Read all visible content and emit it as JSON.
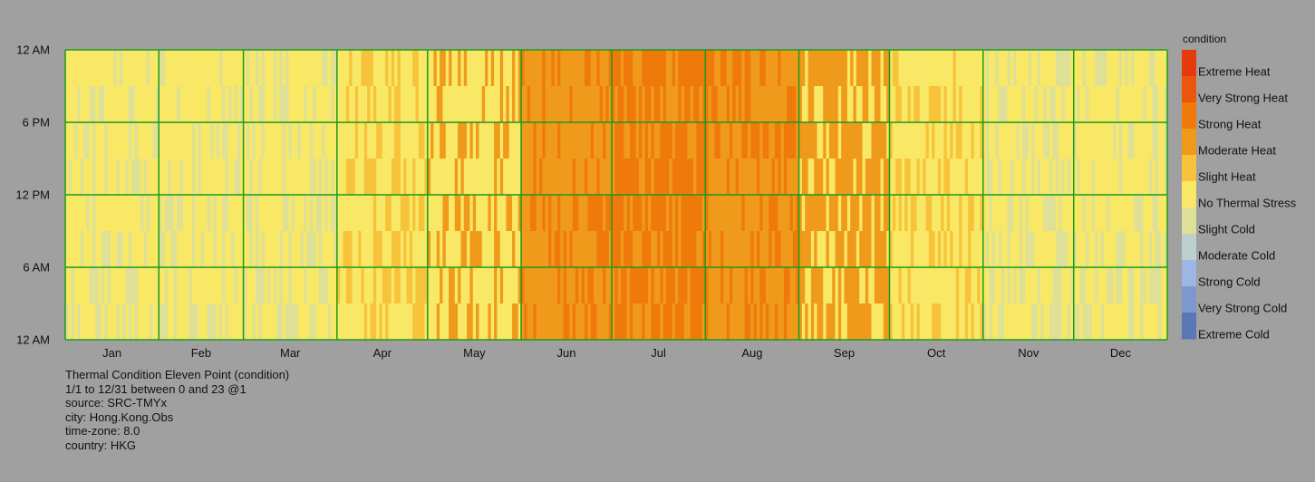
{
  "chart_data": {
    "type": "heatmap",
    "x_axis": {
      "tick_labels": [
        "Jan",
        "Feb",
        "Mar",
        "Apr",
        "May",
        "Jun",
        "Jul",
        "Aug",
        "Sep",
        "Oct",
        "Nov",
        "Dec"
      ],
      "range": [
        "1/1",
        "12/31"
      ]
    },
    "y_axis": {
      "tick_labels": [
        "12 AM",
        "6 AM",
        "12 PM",
        "6 PM",
        "12 AM"
      ],
      "range": [
        0,
        23
      ]
    },
    "grid": true,
    "grid_color": "#1a9a1a",
    "legend": {
      "title": "condition",
      "placement": "right",
      "categories": [
        {
          "label": "Extreme Heat",
          "color": "#e63a0c"
        },
        {
          "label": "Very Strong Heat",
          "color": "#ea560b"
        },
        {
          "label": "Strong Heat",
          "color": "#ef7a0b"
        },
        {
          "label": "Moderate Heat",
          "color": "#f09a1c"
        },
        {
          "label": "Slight Heat",
          "color": "#f7c33a"
        },
        {
          "label": "No Thermal Stress",
          "color": "#f8e865"
        },
        {
          "label": "Slight Cold",
          "color": "#dfe098"
        },
        {
          "label": "Moderate Cold",
          "color": "#bdd0cf"
        },
        {
          "label": "Strong Cold",
          "color": "#9cb7e3"
        },
        {
          "label": "Very Strong Cold",
          "color": "#7d98cf"
        },
        {
          "label": "Extreme Cold",
          "color": "#5a76b4"
        }
      ]
    },
    "monthly_dominant_condition": [
      {
        "month": "Jan",
        "condition": "No Thermal Stress",
        "secondary": "Slight Cold"
      },
      {
        "month": "Feb",
        "condition": "No Thermal Stress",
        "secondary": "Slight Cold"
      },
      {
        "month": "Mar",
        "condition": "No Thermal Stress",
        "secondary": "Slight Cold"
      },
      {
        "month": "Apr",
        "condition": "No Thermal Stress",
        "secondary": "Slight Heat"
      },
      {
        "month": "May",
        "condition": "No Thermal Stress",
        "secondary": "Moderate Heat"
      },
      {
        "month": "Jun",
        "condition": "Moderate Heat",
        "secondary": "Strong Heat"
      },
      {
        "month": "Jul",
        "condition": "Strong Heat",
        "secondary": "Moderate Heat"
      },
      {
        "month": "Aug",
        "condition": "Moderate Heat",
        "secondary": "Strong Heat"
      },
      {
        "month": "Sep",
        "condition": "Moderate Heat",
        "secondary": "No Thermal Stress"
      },
      {
        "month": "Oct",
        "condition": "No Thermal Stress",
        "secondary": "Slight Heat"
      },
      {
        "month": "Nov",
        "condition": "No Thermal Stress",
        "secondary": "Slight Cold"
      },
      {
        "month": "Dec",
        "condition": "No Thermal Stress",
        "secondary": "Slight Cold"
      }
    ],
    "info": {
      "title": "Thermal Condition Eleven Point (condition)",
      "period": "1/1 to 12/31 between 0 and 23 @1",
      "source": "source: SRC-TMYx",
      "city": "city: Hong.Kong.Obs",
      "timezone": "time-zone: 8.0",
      "country": "country: HKG"
    }
  }
}
